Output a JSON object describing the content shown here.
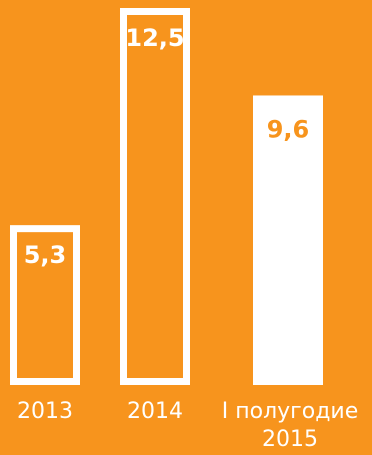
{
  "chart_data": {
    "type": "bar",
    "categories": [
      "2013",
      "2014",
      "I полугодие 2015"
    ],
    "category_lines": [
      [
        "2013"
      ],
      [
        "2014"
      ],
      [
        "I полугодие",
        "2015"
      ]
    ],
    "values": [
      5.3,
      12.5,
      9.6
    ],
    "data_labels": [
      "5,3",
      "12,5",
      "9,6"
    ],
    "bar_styles": [
      "outline",
      "outline",
      "filled"
    ],
    "ylim": [
      0,
      12.5
    ],
    "grid": false,
    "colors": {
      "background": "#F7941D",
      "bar": "#FFFFFF",
      "label_on_fill": "#F7941D",
      "label_on_outline": "#FFFFFF"
    }
  }
}
